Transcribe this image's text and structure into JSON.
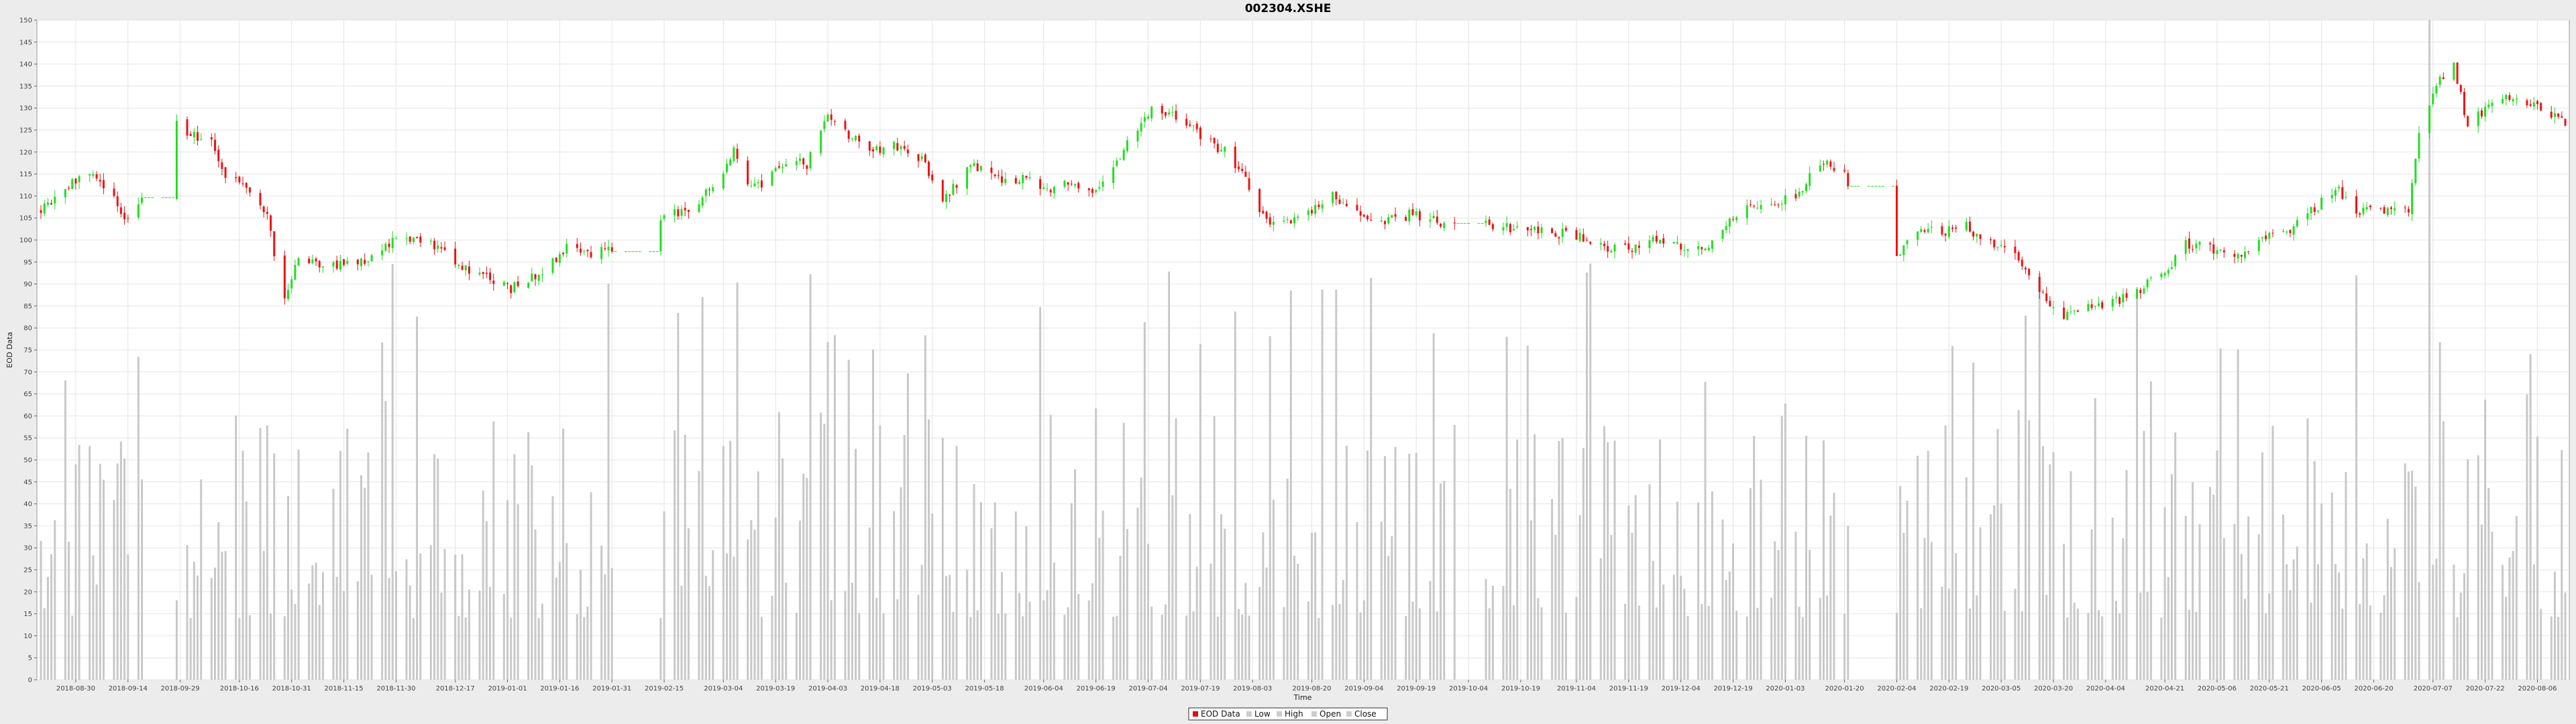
{
  "chart_data": {
    "type": "bar",
    "title": "002304.XSHE",
    "xlabel": "Time",
    "ylabel": "EOD Data",
    "ylim": [
      0,
      150
    ],
    "ytick_step": 5,
    "grid": true,
    "legend_placement": "bottom-center",
    "date_range": [
      "2018-08-20",
      "2020-08-14"
    ],
    "x_ticks": [
      "2018-08-30",
      "2018-09-14",
      "2018-09-29",
      "2018-10-16",
      "2018-10-31",
      "2018-11-15",
      "2018-11-30",
      "2018-12-17",
      "2019-01-01",
      "2019-01-16",
      "2019-01-31",
      "2019-02-15",
      "2019-03-04",
      "2019-03-19",
      "2019-04-03",
      "2019-04-18",
      "2019-05-03",
      "2019-05-18",
      "2019-06-04",
      "2019-06-19",
      "2019-07-04",
      "2019-07-19",
      "2019-08-03",
      "2019-08-20",
      "2019-09-04",
      "2019-09-19",
      "2019-10-04",
      "2019-10-19",
      "2019-11-04",
      "2019-11-19",
      "2019-12-04",
      "2019-12-19",
      "2020-01-03",
      "2020-01-20",
      "2020-02-04",
      "2020-02-19",
      "2020-03-05",
      "2020-03-20",
      "2020-04-04",
      "2020-04-21",
      "2020-05-06",
      "2020-05-21",
      "2020-06-05",
      "2020-06-20",
      "2020-07-07",
      "2020-07-22",
      "2020-08-06"
    ],
    "gaps": [
      [
        "2018-09-19",
        "2018-09-27"
      ],
      [
        "2019-02-01",
        "2019-02-13"
      ],
      [
        "2019-10-01",
        "2019-10-08"
      ],
      [
        "2020-01-22",
        "2020-02-03"
      ]
    ],
    "close_keypoints": [
      [
        "2018-08-20",
        107
      ],
      [
        "2018-08-27",
        112
      ],
      [
        "2018-09-03",
        115
      ],
      [
        "2018-09-10",
        110
      ],
      [
        "2018-09-14",
        104
      ],
      [
        "2018-09-18",
        110
      ],
      [
        "2018-09-24",
        120
      ],
      [
        "2018-09-28",
        126
      ],
      [
        "2018-10-08",
        122
      ],
      [
        "2018-10-12",
        114
      ],
      [
        "2018-10-18",
        112
      ],
      [
        "2018-10-24",
        105
      ],
      [
        "2018-10-29",
        86
      ],
      [
        "2018-11-02",
        96
      ],
      [
        "2018-11-09",
        94
      ],
      [
        "2018-11-16",
        95
      ],
      [
        "2018-11-23",
        96
      ],
      [
        "2018-11-30",
        101
      ],
      [
        "2018-12-07",
        100
      ],
      [
        "2018-12-14",
        97
      ],
      [
        "2018-12-21",
        93
      ],
      [
        "2019-01-02",
        89
      ],
      [
        "2019-01-10",
        92
      ],
      [
        "2019-01-18",
        98
      ],
      [
        "2019-01-25",
        97
      ],
      [
        "2019-01-31",
        98
      ],
      [
        "2019-02-15",
        105
      ],
      [
        "2019-02-22",
        107
      ],
      [
        "2019-03-01",
        112
      ],
      [
        "2019-03-07",
        120
      ],
      [
        "2019-03-12",
        112
      ],
      [
        "2019-03-15",
        112
      ],
      [
        "2019-03-22",
        118
      ],
      [
        "2019-03-28",
        117
      ],
      [
        "2019-04-03",
        128
      ],
      [
        "2019-04-09",
        124
      ],
      [
        "2019-04-15",
        120
      ],
      [
        "2019-04-22",
        122
      ],
      [
        "2019-04-30",
        118
      ],
      [
        "2019-05-06",
        109
      ],
      [
        "2019-05-10",
        113
      ],
      [
        "2019-05-15",
        117
      ],
      [
        "2019-05-21",
        114
      ],
      [
        "2019-05-31",
        114
      ],
      [
        "2019-06-06",
        111
      ],
      [
        "2019-06-12",
        113
      ],
      [
        "2019-06-18",
        111
      ],
      [
        "2019-06-25",
        118
      ],
      [
        "2019-07-01",
        125
      ],
      [
        "2019-07-05",
        130
      ],
      [
        "2019-07-12",
        128
      ],
      [
        "2019-07-19",
        124
      ],
      [
        "2019-07-26",
        120
      ],
      [
        "2019-08-01",
        114
      ],
      [
        "2019-08-06",
        105
      ],
      [
        "2019-08-12",
        104
      ],
      [
        "2019-08-19",
        106
      ],
      [
        "2019-08-26",
        110
      ],
      [
        "2019-09-02",
        106
      ],
      [
        "2019-09-10",
        104
      ],
      [
        "2019-09-18",
        106
      ],
      [
        "2019-09-26",
        104
      ],
      [
        "2019-10-15",
        103
      ],
      [
        "2019-10-25",
        102
      ],
      [
        "2019-11-04",
        101
      ],
      [
        "2019-11-12",
        98
      ],
      [
        "2019-11-20",
        98
      ],
      [
        "2019-11-28",
        100
      ],
      [
        "2019-12-06",
        98
      ],
      [
        "2019-12-13",
        99
      ],
      [
        "2019-12-20",
        106
      ],
      [
        "2019-12-27",
        108
      ],
      [
        "2020-01-06",
        110
      ],
      [
        "2020-01-13",
        118
      ],
      [
        "2020-01-20",
        115
      ],
      [
        "2020-01-23",
        107
      ],
      [
        "2020-02-04",
        97
      ],
      [
        "2020-02-10",
        102
      ],
      [
        "2020-02-17",
        102
      ],
      [
        "2020-02-24",
        103
      ],
      [
        "2020-03-02",
        99
      ],
      [
        "2020-03-09",
        96
      ],
      [
        "2020-03-16",
        88
      ],
      [
        "2020-03-23",
        83
      ],
      [
        "2020-03-30",
        85
      ],
      [
        "2020-04-07",
        86
      ],
      [
        "2020-04-14",
        89
      ],
      [
        "2020-04-21",
        93
      ],
      [
        "2020-04-27",
        99
      ],
      [
        "2020-05-06",
        98
      ],
      [
        "2020-05-14",
        97
      ],
      [
        "2020-05-21",
        101
      ],
      [
        "2020-05-28",
        103
      ],
      [
        "2020-06-03",
        107
      ],
      [
        "2020-06-09",
        112
      ],
      [
        "2020-06-16",
        106
      ],
      [
        "2020-06-23",
        107
      ],
      [
        "2020-06-30",
        106
      ],
      [
        "2020-07-03",
        125
      ],
      [
        "2020-07-07",
        134
      ],
      [
        "2020-07-13",
        140
      ],
      [
        "2020-07-17",
        126
      ],
      [
        "2020-07-22",
        130
      ],
      [
        "2020-07-29",
        133
      ],
      [
        "2020-08-05",
        131
      ],
      [
        "2020-08-14",
        127
      ]
    ],
    "volume_range": [
      14,
      100
    ],
    "volume_spike_date": "2020-07-06",
    "legend": [
      {
        "label": "EOD Data",
        "color": "#e01010"
      },
      {
        "label": "Low",
        "color": "#cccccc"
      },
      {
        "label": "High",
        "color": "#cccccc"
      },
      {
        "label": "Open",
        "color": "#cccccc"
      },
      {
        "label": "Close",
        "color": "#cccccc"
      }
    ],
    "colors": {
      "up": "#22dd22",
      "down": "#ee1111",
      "volume": "#c8c8c8",
      "grid": "#e4e4e4",
      "plot_bg": "#ffffff"
    }
  }
}
